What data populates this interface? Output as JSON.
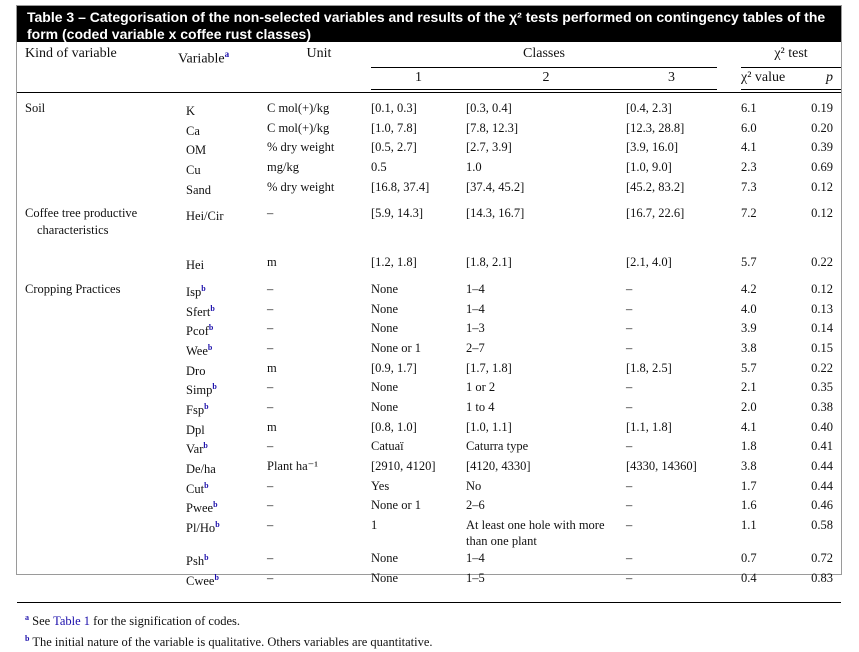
{
  "caption": "Table 3 – Categorisation of the non-selected variables and results of the χ² tests performed on contingency tables of the form (coded variable x coffee rust classes)",
  "headers": {
    "kind": "Kind of variable",
    "variable": "Variable",
    "variable_sup": "a",
    "unit": "Unit",
    "classes": "Classes",
    "class1": "1",
    "class2": "2",
    "class3": "3",
    "chi_test": "χ² test",
    "chi_value": "χ² value",
    "p": "p"
  },
  "groups": [
    {
      "kind": "Soil",
      "rows": [
        {
          "var": "K",
          "sup": "",
          "unit": "C mol(+)/kg",
          "c1": "[0.1, 0.3]",
          "c2": "[0.3, 0.4]",
          "c3": "[0.4, 2.3]",
          "chi": "6.1",
          "p": "0.19"
        },
        {
          "var": "Ca",
          "sup": "",
          "unit": "C mol(+)/kg",
          "c1": "[1.0, 7.8]",
          "c2": "[7.8, 12.3]",
          "c3": "[12.3, 28.8]",
          "chi": "6.0",
          "p": "0.20"
        },
        {
          "var": "OM",
          "sup": "",
          "unit": "% dry weight",
          "c1": "[0.5, 2.7]",
          "c2": "[2.7, 3.9]",
          "c3": "[3.9, 16.0]",
          "chi": "4.1",
          "p": "0.39"
        },
        {
          "var": "Cu",
          "sup": "",
          "unit": "mg/kg",
          "c1": "0.5",
          "c2": "1.0",
          "c3": "[1.0, 9.0]",
          "chi": "2.3",
          "p": "0.69"
        },
        {
          "var": "Sand",
          "sup": "",
          "unit": "% dry weight",
          "c1": "[16.8, 37.4]",
          "c2": "[37.4, 45.2]",
          "c3": "[45.2, 83.2]",
          "chi": "7.3",
          "p": "0.12"
        }
      ]
    },
    {
      "kind": "Coffee tree productive characteristics",
      "rows": [
        {
          "var": "Hei/Cir",
          "sup": "",
          "unit": "–",
          "c1": "[5.9, 14.3]",
          "c2": "[14.3, 16.7]",
          "c3": "[16.7, 22.6]",
          "chi": "7.2",
          "p": "0.12"
        },
        {
          "var": "Hei",
          "sup": "",
          "unit": "m",
          "c1": "[1.2, 1.8]",
          "c2": "[1.8, 2.1]",
          "c3": "[2.1, 4.0]",
          "chi": "5.7",
          "p": "0.22"
        }
      ]
    },
    {
      "kind": "Cropping Practices",
      "rows": [
        {
          "var": "Isp",
          "sup": "b",
          "unit": "–",
          "c1": "None",
          "c2": "1–4",
          "c3": "–",
          "chi": "4.2",
          "p": "0.12"
        },
        {
          "var": "Sfert",
          "sup": "b",
          "unit": "–",
          "c1": "None",
          "c2": "1–4",
          "c3": "–",
          "chi": "4.0",
          "p": "0.13"
        },
        {
          "var": "Pcof",
          "sup": "b",
          "unit": "–",
          "c1": "None",
          "c2": "1–3",
          "c3": "–",
          "chi": "3.9",
          "p": "0.14"
        },
        {
          "var": "Wee",
          "sup": "b",
          "unit": "–",
          "c1": "None or 1",
          "c2": "2–7",
          "c3": "–",
          "chi": "3.8",
          "p": "0.15"
        },
        {
          "var": "Dro",
          "sup": "",
          "unit": "m",
          "c1": "[0.9, 1.7]",
          "c2": "[1.7, 1.8]",
          "c3": "[1.8, 2.5]",
          "chi": "5.7",
          "p": "0.22"
        },
        {
          "var": "Simp",
          "sup": "b",
          "unit": "–",
          "c1": "None",
          "c2": "1 or 2",
          "c3": "–",
          "chi": "2.1",
          "p": "0.35"
        },
        {
          "var": "Fsp",
          "sup": "b",
          "unit": "–",
          "c1": "None",
          "c2": "1 to 4",
          "c3": "–",
          "chi": "2.0",
          "p": "0.38"
        },
        {
          "var": "Dpl",
          "sup": "",
          "unit": "m",
          "c1": "[0.8, 1.0]",
          "c2": "[1.0, 1.1]",
          "c3": "[1.1, 1.8]",
          "chi": "4.1",
          "p": "0.40"
        },
        {
          "var": "Var",
          "sup": "b",
          "unit": "–",
          "c1": "Catuaï",
          "c2": "Caturra type",
          "c3": "–",
          "chi": "1.8",
          "p": "0.41"
        },
        {
          "var": "De/ha",
          "sup": "",
          "unit": "Plant ha⁻¹",
          "c1": "[2910, 4120]",
          "c2": "[4120, 4330]",
          "c3": "[4330, 14360]",
          "chi": "3.8",
          "p": "0.44"
        },
        {
          "var": "Cut",
          "sup": "b",
          "unit": "–",
          "c1": "Yes",
          "c2": "No",
          "c3": "–",
          "chi": "1.7",
          "p": "0.44"
        },
        {
          "var": "Pwee",
          "sup": "b",
          "unit": "–",
          "c1": "None or 1",
          "c2": "2–6",
          "c3": "–",
          "chi": "1.6",
          "p": "0.46"
        },
        {
          "var": "Pl/Ho",
          "sup": "b",
          "unit": "–",
          "c1": "1",
          "c2": "At least one hole with more than one plant",
          "c3": "–",
          "chi": "1.1",
          "p": "0.58"
        },
        {
          "var": "Psh",
          "sup": "b",
          "unit": "–",
          "c1": "None",
          "c2": "1–4",
          "c3": "–",
          "chi": "0.7",
          "p": "0.72"
        },
        {
          "var": "Cwee",
          "sup": "b",
          "unit": "–",
          "c1": "None",
          "c2": "1–5",
          "c3": "–",
          "chi": "0.4",
          "p": "0.83"
        }
      ]
    }
  ],
  "footnotes": [
    {
      "mark": "a",
      "pre": "See ",
      "link": "Table 1",
      "post": " for the signification of codes."
    },
    {
      "mark": "b",
      "pre": "The initial nature of the variable is qualitative. Others variables are quantitative.",
      "link": "",
      "post": ""
    }
  ]
}
